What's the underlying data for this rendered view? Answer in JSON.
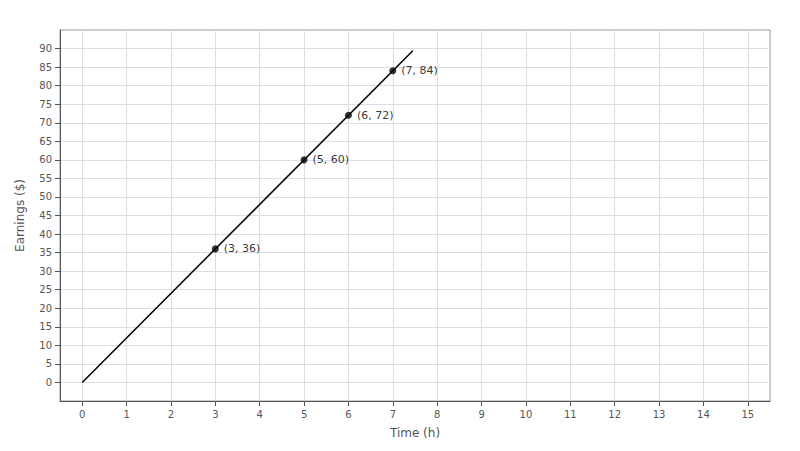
{
  "chart_data": {
    "type": "scatter",
    "xlabel": "Time (h)",
    "ylabel": "Earnings ($)",
    "xlim": [
      -0.5,
      15.5
    ],
    "ylim": [
      -5,
      95
    ],
    "xticks": [
      0,
      1,
      2,
      3,
      4,
      5,
      6,
      7,
      8,
      9,
      10,
      11,
      12,
      13,
      14,
      15
    ],
    "yticks": [
      0,
      5,
      10,
      15,
      20,
      25,
      30,
      35,
      40,
      45,
      50,
      55,
      60,
      65,
      70,
      75,
      80,
      85,
      90
    ],
    "grid": true,
    "series": [
      {
        "type": "line",
        "color": "#000000",
        "x": [
          0,
          7.45
        ],
        "values": [
          0,
          89.4
        ]
      },
      {
        "type": "scatter",
        "color": "#000000",
        "x": [
          3,
          5,
          6,
          7
        ],
        "values": [
          36,
          60,
          72,
          84
        ],
        "value_labels": [
          "(3, 36)",
          "(5, 60)",
          "(6, 72)",
          "(7, 84)"
        ],
        "data_labels": true
      }
    ]
  }
}
